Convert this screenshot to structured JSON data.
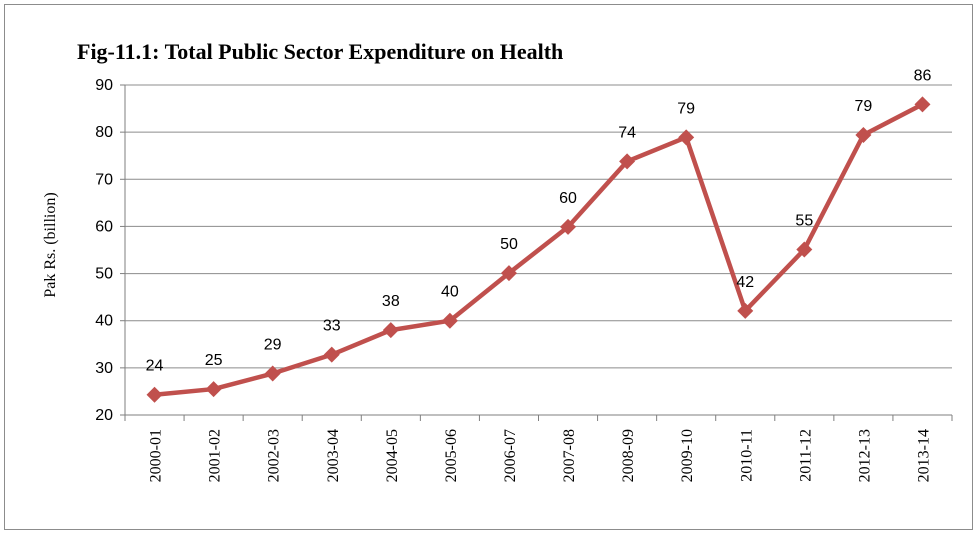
{
  "colors": {
    "series": "#C0504D",
    "grid": "#8c8c8c",
    "axis": "#7f7f7f",
    "frame": "#8c8c8c"
  },
  "chart_data": {
    "type": "line",
    "title": "Fig-11.1: Total Public Sector Expenditure on Health",
    "xlabel": "",
    "ylabel": "Pak Rs. (billion)",
    "ylim": [
      20,
      90
    ],
    "yticks": [
      20,
      30,
      40,
      50,
      60,
      70,
      80,
      90
    ],
    "grid": "horizontal",
    "legend": "none",
    "marker": "diamond",
    "categories": [
      "2000-01",
      "2001-02",
      "2002-03",
      "2003-04",
      "2004-05",
      "2005-06",
      "2006-07",
      "2007-08",
      "2008-09",
      "2009-10",
      "2010-11",
      "2011-12",
      "2012-13",
      "2013-14"
    ],
    "series": [
      {
        "values": [
          24.3,
          25.5,
          28.8,
          32.8,
          38.0,
          40.0,
          50.1,
          59.9,
          73.8,
          78.9,
          42.1,
          55.1,
          79.4,
          85.9
        ],
        "labels": [
          "24",
          "25",
          "29",
          "33",
          "38",
          "40",
          "50",
          "60",
          "74",
          "79",
          "42",
          "55",
          "79",
          "86"
        ]
      }
    ]
  }
}
